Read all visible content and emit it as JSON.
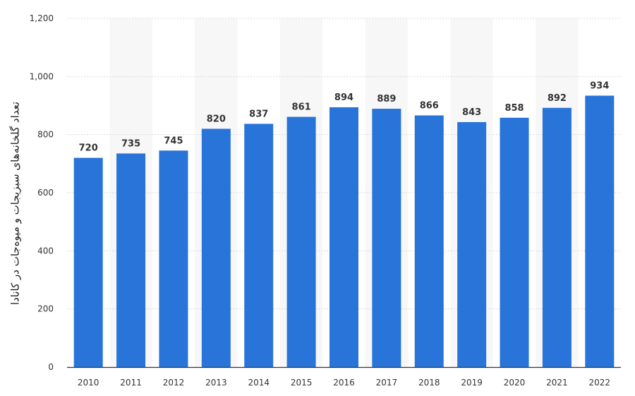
{
  "chart_data": {
    "type": "bar",
    "title": "",
    "xlabel": "",
    "ylabel": "تعداد گلخانه‌های سبزیجات و میوه‌جات در کانادا",
    "categories": [
      "2010",
      "2011",
      "2012",
      "2013",
      "2014",
      "2015",
      "2016",
      "2017",
      "2018",
      "2019",
      "2020",
      "2021",
      "2022"
    ],
    "values": [
      720,
      735,
      745,
      820,
      837,
      861,
      894,
      889,
      866,
      843,
      858,
      892,
      934
    ],
    "value_labels": [
      "720",
      "735",
      "745",
      "820",
      "837",
      "861",
      "894",
      "889",
      "866",
      "843",
      "858",
      "892",
      "934"
    ],
    "ylim": [
      0,
      1200
    ],
    "yticks": [
      0,
      200,
      400,
      600,
      800,
      1000,
      1200
    ],
    "ytick_labels": [
      "0",
      "200",
      "400",
      "600",
      "800",
      "1,000",
      "1,200"
    ],
    "grid": true,
    "legend": "none",
    "colors": {
      "bar": "#2874d8",
      "band": "#f7f7f7",
      "grid": "#d9d9d9",
      "axis": "#333333"
    }
  }
}
